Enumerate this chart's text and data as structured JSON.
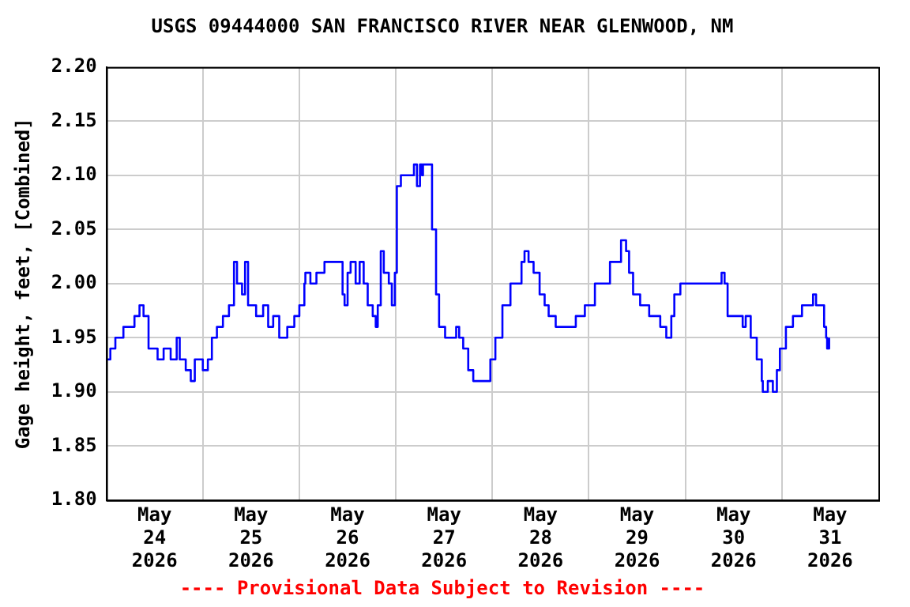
{
  "chart_data": {
    "type": "step",
    "title": "USGS 09444000 SAN FRANCISCO RIVER NEAR GLENWOOD, NM",
    "ylabel": "Gage height, feet, [Combined]",
    "annotations": [
      "---- Provisional Data Subject to Revision ----"
    ],
    "xlim": [
      "2026-05-24T00:00",
      "2026-06-01T00:00"
    ],
    "xticks": [
      {
        "value": "2026-05-24T12:00",
        "label": "May 24 2026"
      },
      {
        "value": "2026-05-25T00:00",
        "label": null
      },
      {
        "value": "2026-05-25T12:00",
        "label": "May 25 2026"
      },
      {
        "value": "2026-05-26T00:00",
        "label": null
      },
      {
        "value": "2026-05-26T12:00",
        "label": "May 26 2026"
      },
      {
        "value": "2026-05-27T00:00",
        "label": null
      },
      {
        "value": "2026-05-27T12:00",
        "label": "May 27 2026"
      },
      {
        "value": "2026-05-28T00:00",
        "label": null
      },
      {
        "value": "2026-05-28T12:00",
        "label": "May 28 2026"
      },
      {
        "value": "2026-05-29T00:00",
        "label": null
      },
      {
        "value": "2026-05-29T12:00",
        "label": "May 29 2026"
      },
      {
        "value": "2026-05-30T00:00",
        "label": null
      },
      {
        "value": "2026-05-30T12:00",
        "label": "May 30 2026"
      },
      {
        "value": "2026-05-31T00:00",
        "label": null
      },
      {
        "value": "2026-05-31T12:00",
        "label": "May 31 2026"
      }
    ],
    "ylim": [
      1.8,
      2.2
    ],
    "yticks": [
      {
        "value": 1.8,
        "label": "1.80"
      },
      {
        "value": 1.85,
        "label": "1.85"
      },
      {
        "value": 1.9,
        "label": "1.90"
      },
      {
        "value": 1.95,
        "label": "1.95"
      },
      {
        "value": 2.0,
        "label": "2.00"
      },
      {
        "value": 2.05,
        "label": "2.05"
      },
      {
        "value": 2.1,
        "label": "2.10"
      },
      {
        "value": 2.15,
        "label": "2.15"
      },
      {
        "value": 2.2,
        "label": "2.20"
      }
    ],
    "grid": true,
    "legend": false,
    "marker": "none",
    "series": [
      {
        "color": "#0000ff",
        "x": [
          "2026-05-24T00:00",
          "2026-05-24T01:00",
          "2026-05-24T02:15",
          "2026-05-24T04:15",
          "2026-05-24T07:00",
          "2026-05-24T08:15",
          "2026-05-24T09:15",
          "2026-05-24T10:30",
          "2026-05-24T12:45",
          "2026-05-24T14:15",
          "2026-05-24T16:00",
          "2026-05-24T17:30",
          "2026-05-24T18:15",
          "2026-05-24T19:45",
          "2026-05-24T21:00",
          "2026-05-24T22:00",
          "2026-05-25T00:00",
          "2026-05-25T01:15",
          "2026-05-25T02:15",
          "2026-05-25T03:30",
          "2026-05-25T05:00",
          "2026-05-25T06:30",
          "2026-05-25T07:45",
          "2026-05-25T08:30",
          "2026-05-25T09:45",
          "2026-05-25T10:30",
          "2026-05-25T11:15",
          "2026-05-25T13:15",
          "2026-05-25T15:00",
          "2026-05-25T16:15",
          "2026-05-25T17:30",
          "2026-05-25T19:00",
          "2026-05-25T21:00",
          "2026-05-25T22:45",
          "2026-05-26T00:00",
          "2026-05-26T01:15",
          "2026-05-26T01:30",
          "2026-05-26T02:45",
          "2026-05-26T04:15",
          "2026-05-26T06:15",
          "2026-05-26T09:45",
          "2026-05-26T10:45",
          "2026-05-26T11:15",
          "2026-05-26T12:00",
          "2026-05-26T12:45",
          "2026-05-26T14:00",
          "2026-05-26T15:00",
          "2026-05-26T16:00",
          "2026-05-26T17:00",
          "2026-05-26T18:15",
          "2026-05-26T19:00",
          "2026-05-26T19:30",
          "2026-05-26T20:15",
          "2026-05-26T21:00",
          "2026-05-26T22:15",
          "2026-05-26T23:00",
          "2026-05-26T23:45",
          "2026-05-27T00:15",
          "2026-05-27T01:15",
          "2026-05-27T04:00",
          "2026-05-27T04:30",
          "2026-05-27T05:15",
          "2026-05-27T06:00",
          "2026-05-27T06:30",
          "2026-05-27T06:45",
          "2026-05-27T08:45",
          "2026-05-27T09:00",
          "2026-05-27T10:00",
          "2026-05-27T10:45",
          "2026-05-27T12:15",
          "2026-05-27T13:45",
          "2026-05-27T15:00",
          "2026-05-27T15:45",
          "2026-05-27T16:45",
          "2026-05-27T18:00",
          "2026-05-27T19:15",
          "2026-05-27T21:30",
          "2026-05-27T23:30",
          "2026-05-28T00:45",
          "2026-05-28T02:30",
          "2026-05-28T04:30",
          "2026-05-28T07:15",
          "2026-05-28T08:00",
          "2026-05-28T09:00",
          "2026-05-28T10:15",
          "2026-05-28T11:45",
          "2026-05-28T13:00",
          "2026-05-28T14:00",
          "2026-05-28T15:45",
          "2026-05-28T19:15",
          "2026-05-28T20:45",
          "2026-05-28T23:00",
          "2026-05-29T01:30",
          "2026-05-29T05:15",
          "2026-05-29T08:00",
          "2026-05-29T09:15",
          "2026-05-29T10:00",
          "2026-05-29T11:00",
          "2026-05-29T12:45",
          "2026-05-29T15:00",
          "2026-05-29T17:45",
          "2026-05-29T19:15",
          "2026-05-29T20:30",
          "2026-05-29T21:15",
          "2026-05-29T22:45",
          "2026-05-30T07:45",
          "2026-05-30T09:00",
          "2026-05-30T09:45",
          "2026-05-30T10:30",
          "2026-05-30T13:30",
          "2026-05-30T14:15",
          "2026-05-30T15:00",
          "2026-05-30T16:15",
          "2026-05-30T17:45",
          "2026-05-30T19:00",
          "2026-05-30T19:15",
          "2026-05-30T20:30",
          "2026-05-30T21:45",
          "2026-05-30T22:45",
          "2026-05-30T23:30",
          "2026-05-31T01:00",
          "2026-05-31T02:45",
          "2026-05-31T05:00",
          "2026-05-31T06:15",
          "2026-05-31T07:45",
          "2026-05-31T08:30",
          "2026-05-31T09:45",
          "2026-05-31T10:30",
          "2026-05-31T11:00",
          "2026-05-31T11:15",
          "2026-05-31T11:45"
        ],
        "values": [
          1.93,
          1.94,
          1.95,
          1.96,
          1.97,
          1.98,
          1.97,
          1.94,
          1.93,
          1.94,
          1.93,
          1.95,
          1.93,
          1.92,
          1.91,
          1.93,
          1.92,
          1.93,
          1.95,
          1.96,
          1.97,
          1.98,
          2.02,
          2.0,
          1.99,
          2.02,
          1.98,
          1.97,
          1.98,
          1.96,
          1.97,
          1.95,
          1.96,
          1.97,
          1.98,
          2.0,
          2.01,
          2.0,
          2.01,
          2.02,
          2.02,
          1.99,
          1.98,
          2.01,
          2.02,
          2.0,
          2.02,
          2.0,
          1.98,
          1.97,
          1.96,
          1.98,
          2.03,
          2.01,
          2.0,
          1.98,
          2.01,
          2.09,
          2.1,
          2.1,
          2.11,
          2.09,
          2.11,
          2.1,
          2.11,
          2.11,
          2.05,
          1.99,
          1.96,
          1.95,
          1.95,
          1.96,
          1.95,
          1.94,
          1.92,
          1.91,
          1.91,
          1.93,
          1.95,
          1.98,
          2.0,
          2.02,
          2.03,
          2.02,
          2.01,
          1.99,
          1.98,
          1.97,
          1.96,
          1.96,
          1.97,
          1.98,
          2.0,
          2.02,
          2.04,
          2.03,
          2.01,
          1.99,
          1.98,
          1.97,
          1.96,
          1.95,
          1.97,
          1.99,
          2.0,
          2.0,
          2.01,
          2.0,
          1.97,
          1.97,
          1.96,
          1.97,
          1.95,
          1.93,
          1.91,
          1.9,
          1.91,
          1.9,
          1.92,
          1.94,
          1.96,
          1.97,
          1.98,
          1.98,
          1.99,
          1.98,
          1.98,
          1.96,
          1.95,
          1.94,
          1.95
        ]
      }
    ]
  }
}
